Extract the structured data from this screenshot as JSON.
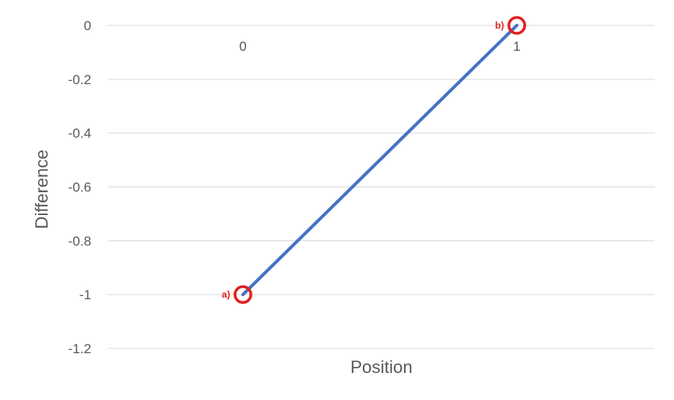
{
  "chart_data": {
    "type": "line",
    "title": "",
    "xlabel": "Position",
    "ylabel": "Difference",
    "x_categories": [
      "0",
      "1"
    ],
    "ylim": [
      -1.2,
      0
    ],
    "y_ticks": [
      0,
      -0.2,
      -0.4,
      -0.6,
      -0.8,
      -1,
      -1.2
    ],
    "y_tick_labels": [
      "0",
      "-0.2",
      "-0.4",
      "-0.6",
      "-0.8",
      "-1",
      "-1.2"
    ],
    "grid": true,
    "series": [
      {
        "values": [
          -1,
          0
        ],
        "color": "#4472c4"
      }
    ],
    "annotations": [
      {
        "label": "a)",
        "x": "0",
        "y": -1,
        "color": "#e02020"
      },
      {
        "label": "b)",
        "x": "1",
        "y": 0,
        "color": "#e02020"
      }
    ]
  }
}
